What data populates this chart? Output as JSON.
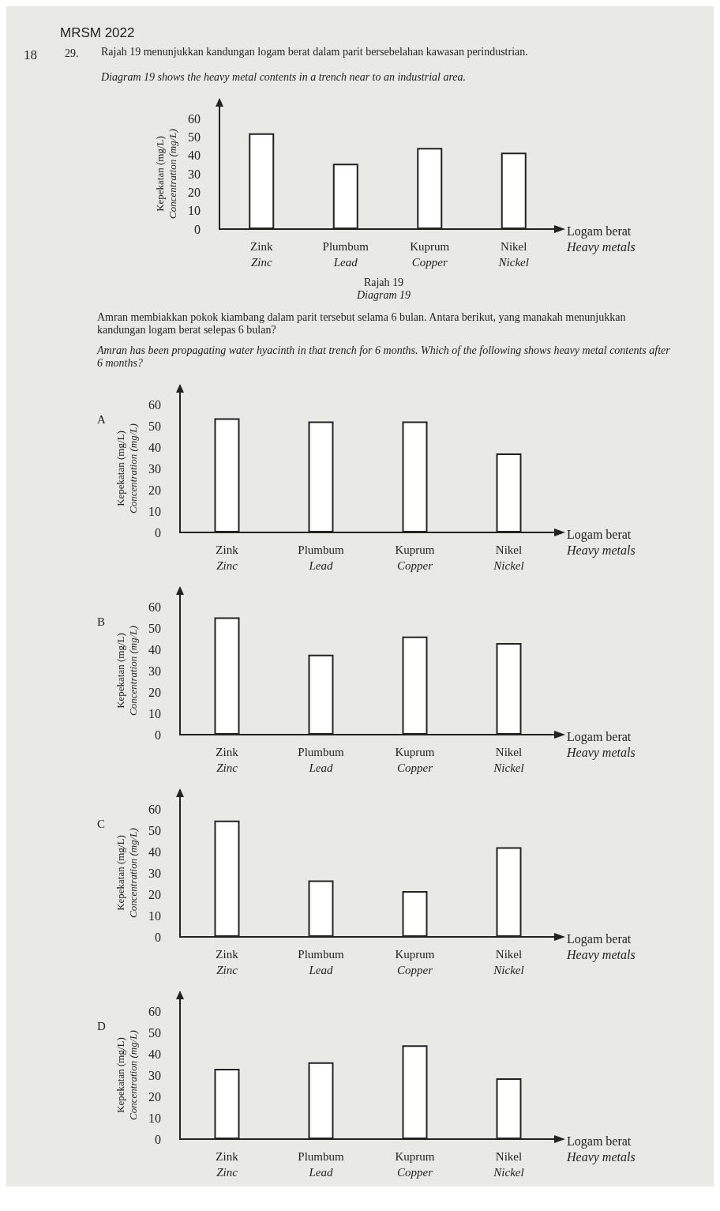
{
  "chart_data": [
    {
      "type": "bar",
      "title": "Rajah 19 menunjukkan kandungan logam berat dalam parit bersebelahan kawasan perindustrian.",
      "subtitle": "Diagram 19 shows the heavy metal contents in a trench near to an industrial area.",
      "annotations": [
        "MRSM 2022",
        "18",
        "29.",
        "Rajah 19",
        "Diagram 19",
        "Amran membiakkan pokok kiambang dalam parit tersebut selama 6 bulan. Antara berikut, yang manakah menunjukkan kandungan logam berat selepas 6 bulan?",
        "Amran has been propagating water hyacinth in that trench for 6 months. Which of the following shows heavy metal contents after 6 months?"
      ],
      "categories": [
        "Zink\nZinc",
        "Plumbum\nLead",
        "Kuprum\nCopper",
        "Nikel\nNickel"
      ],
      "values": [
        52,
        35.5,
        44,
        41.5
      ],
      "color": "#ffffff",
      "xlabel": "Logam berat\nHeavy metals",
      "ylabel": "Kepekatan (mg/L)\nConcentration (mg/L)",
      "ylim": [
        0,
        60
      ],
      "yticks": [
        0,
        10,
        20,
        30,
        40,
        50,
        60
      ],
      "grid": false
    },
    {
      "type": "bar",
      "title": "A",
      "categories": [
        "Zink\nZinc",
        "Plumbum\nLead",
        "Kuprum\nCopper",
        "Nikel\nNickel"
      ],
      "values": [
        53.5,
        52,
        52,
        37
      ],
      "color": "#ffffff",
      "xlabel": "Logam berat\nHeavy metals",
      "ylabel": "Kepekatan (mg/L)\nConcentration (mg/L)",
      "ylim": [
        0,
        60
      ],
      "yticks": [
        0,
        10,
        20,
        30,
        40,
        50,
        60
      ],
      "grid": false
    },
    {
      "type": "bar",
      "title": "B",
      "categories": [
        "Zink\nZinc",
        "Plumbum\nLead",
        "Kuprum\nCopper",
        "Nikel\nNickel"
      ],
      "values": [
        55,
        37.5,
        46,
        43
      ],
      "color": "#ffffff",
      "xlabel": "Logam berat\nHeavy metals",
      "ylabel": "Kepekatan (mg/L)\nConcentration (mg/L)",
      "ylim": [
        0,
        60
      ],
      "yticks": [
        0,
        10,
        20,
        30,
        40,
        50,
        60
      ],
      "grid": false
    },
    {
      "type": "bar",
      "title": "C",
      "categories": [
        "Zink\nZinc",
        "Plumbum\nLead",
        "Kuprum\nCopper",
        "Nikel\nNickel"
      ],
      "values": [
        54.5,
        26.5,
        21.5,
        42
      ],
      "color": "#ffffff",
      "xlabel": "Logam berat\nHeavy metals",
      "ylabel": "Kepekatan (mg/L)\nConcentration (mg/L)",
      "ylim": [
        0,
        60
      ],
      "yticks": [
        0,
        10,
        20,
        30,
        40,
        50,
        60
      ],
      "grid": false
    },
    {
      "type": "bar",
      "title": "D",
      "categories": [
        "Zink\nZinc",
        "Plumbum\nLead",
        "Kuprum\nCopper",
        "Nikel\nNickel"
      ],
      "values": [
        33,
        36,
        44,
        28.5
      ],
      "color": "#ffffff",
      "xlabel": "Logam berat\nHeavy metals",
      "ylabel": "Kepekatan (mg/L)\nConcentration (mg/L)",
      "ylim": [
        0,
        60
      ],
      "yticks": [
        0,
        10,
        20,
        30,
        40,
        50,
        60
      ],
      "grid": false
    }
  ]
}
